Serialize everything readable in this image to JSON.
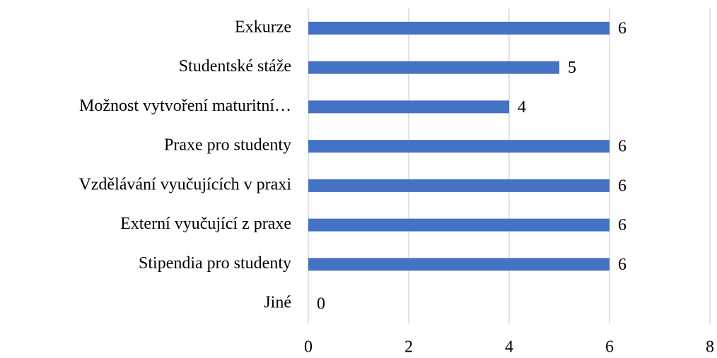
{
  "chart_data": {
    "type": "hbar",
    "categories": [
      "Exkurze",
      "Studentské stáže",
      "Možnost vytvoření maturitní…",
      "Praxe pro studenty",
      "Vzdělávání vyučujících v praxi",
      "Externí vyučující z praxe",
      "Stipendia pro studenty",
      "Jiné"
    ],
    "values": [
      6,
      5,
      4,
      6,
      6,
      6,
      6,
      0
    ],
    "color": "#4472c4",
    "xlim": [
      0,
      8
    ],
    "xticks": [
      0,
      2,
      4,
      6,
      8
    ],
    "grid": true
  }
}
